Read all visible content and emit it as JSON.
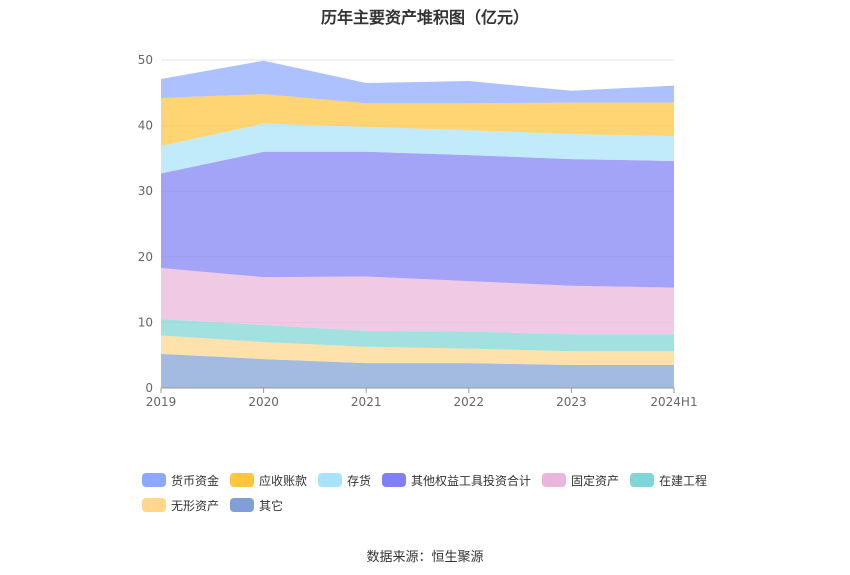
{
  "chart_data": {
    "type": "area",
    "stacked": true,
    "title": "历年主要资产堆积图（亿元）",
    "categories": [
      "2019",
      "2020",
      "2021",
      "2022",
      "2023",
      "2024H1"
    ],
    "ylim": [
      0,
      50
    ],
    "yticks": [
      0,
      10,
      20,
      30,
      40,
      50
    ],
    "grid": true,
    "legend_position": "bottom",
    "series": [
      {
        "name": "其它",
        "color": "#7f9fd6",
        "values": [
          5.2,
          4.4,
          3.8,
          3.8,
          3.5,
          3.5
        ]
      },
      {
        "name": "无形资产",
        "color": "#ffd68c",
        "values": [
          2.8,
          2.6,
          2.5,
          2.2,
          2.1,
          2.1
        ]
      },
      {
        "name": "在建工程",
        "color": "#7fd6d6",
        "values": [
          2.5,
          2.6,
          2.4,
          2.6,
          2.6,
          2.6
        ]
      },
      {
        "name": "固定资产",
        "color": "#eab6db",
        "values": [
          7.8,
          7.3,
          8.3,
          7.7,
          7.4,
          7.1
        ]
      },
      {
        "name": "其他权益工具投资合计",
        "color": "#7f80f5",
        "values": [
          14.4,
          19.1,
          19.0,
          19.2,
          19.3,
          19.3
        ]
      },
      {
        "name": "存货",
        "color": "#a9e2fa",
        "values": [
          4.2,
          4.3,
          3.8,
          3.8,
          3.8,
          3.8
        ]
      },
      {
        "name": "应收账款",
        "color": "#ffc53d",
        "values": [
          7.3,
          4.5,
          3.6,
          4.1,
          4.8,
          5.1
        ]
      },
      {
        "name": "货币资金",
        "color": "#8ea8ff",
        "values": [
          2.9,
          5.1,
          3.1,
          3.4,
          1.8,
          2.6
        ]
      }
    ],
    "legend_order": [
      "货币资金",
      "应收账款",
      "存货",
      "其他权益工具投资合计",
      "固定资产",
      "在建工程",
      "无形资产",
      "其它"
    ]
  },
  "source": "数据来源：恒生聚源"
}
